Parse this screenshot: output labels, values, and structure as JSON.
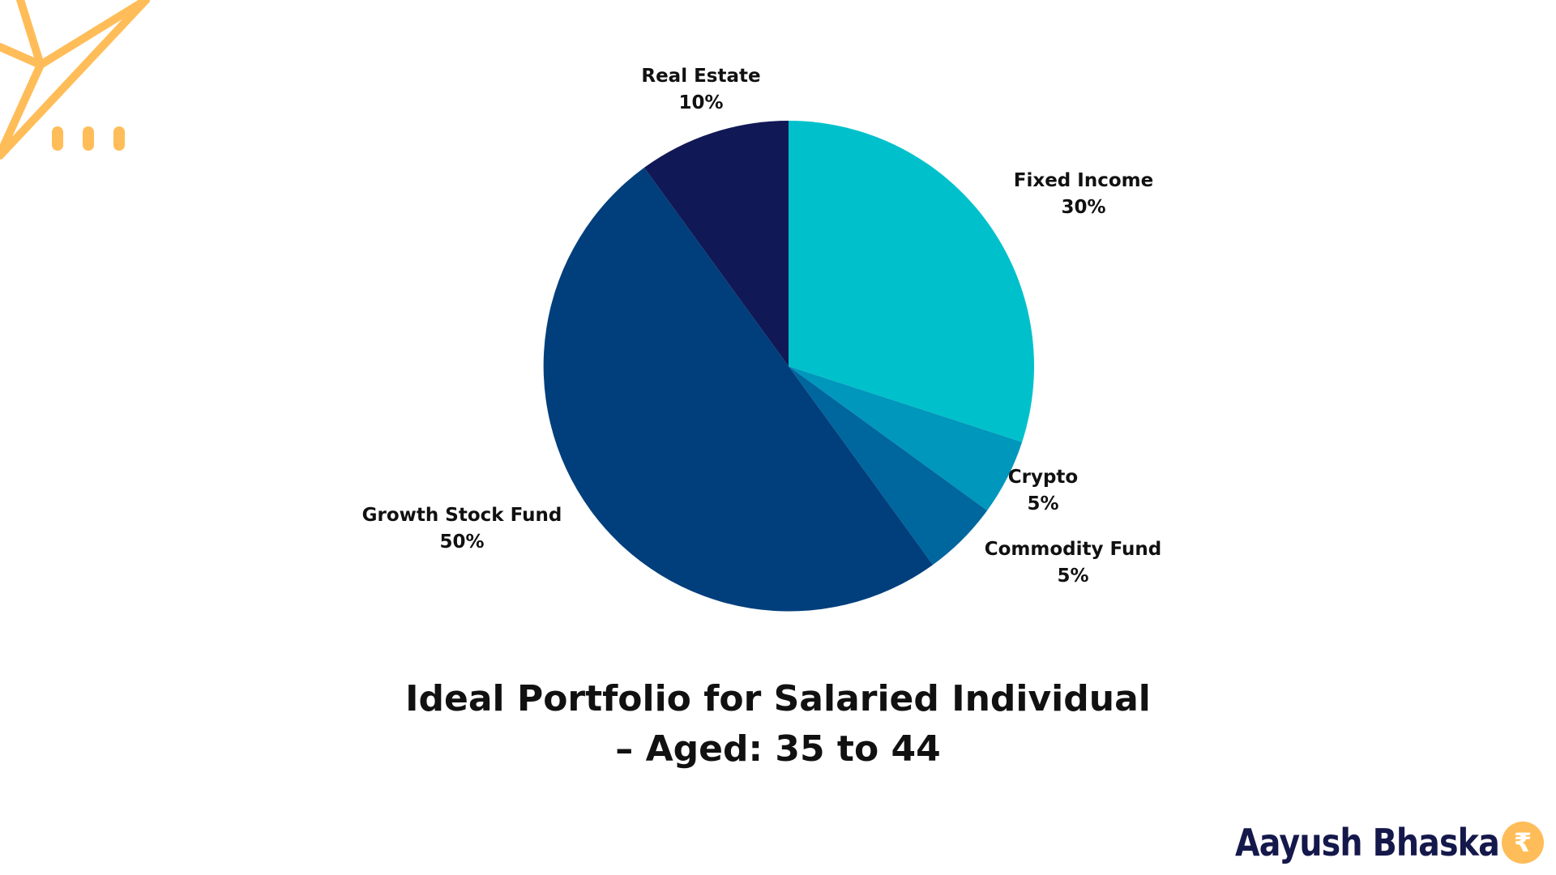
{
  "chart_data": {
    "type": "pie",
    "title": [
      "Ideal Portfolio for Salaried Individual",
      "– Aged: 35 to 44"
    ],
    "slices": [
      {
        "name": "Fixed Income",
        "value": 30,
        "label": "30%",
        "color": "#00c1cb"
      },
      {
        "name": "Crypto",
        "value": 5,
        "label": "5%",
        "color": "#0097bc"
      },
      {
        "name": "Commodity Fund",
        "value": 5,
        "label": "5%",
        "color": "#00669e"
      },
      {
        "name": "Growth Stock Fund",
        "value": 50,
        "label": "50%",
        "color": "#003f7c"
      },
      {
        "name": "Real Estate",
        "value": 10,
        "label": "10%",
        "color": "#111856"
      }
    ],
    "start": "12 o'clock",
    "direction": "clockwise",
    "legend": "none (labels beside slices)"
  },
  "brand": {
    "name": "Aayush Bhaska",
    "logo_symbol": "₹",
    "logo_color": "#ffbd59",
    "text_color": "#15184a"
  },
  "decoration": {
    "accent_color": "#ffbd59",
    "icon": "paper-plane-icon"
  }
}
